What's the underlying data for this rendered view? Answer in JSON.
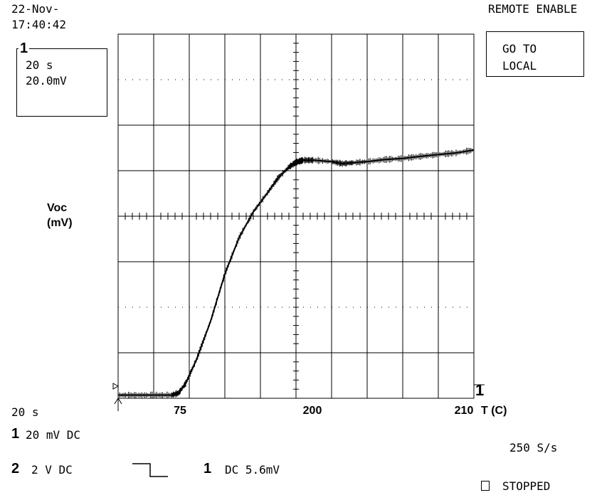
{
  "header": {
    "date": "22-Nov-",
    "time": "17:40:42",
    "status": "REMOTE ENABLE"
  },
  "channel_box": {
    "marker": "1",
    "timebase": "20 s",
    "scale": "20.0mV"
  },
  "goto_local": {
    "line1": "GO TO",
    "line2": "LOCAL"
  },
  "footer": {
    "timebase": "20  s",
    "ch1_num": "1",
    "ch1_setting": "20 mV  DC",
    "ch2_num": "2",
    "ch2_setting": "2  V  DC",
    "trigger_num": "1",
    "trigger_setting": "DC 5.6mV",
    "sample_rate": "250 S/s",
    "status": "STOPPED"
  },
  "chart_data": {
    "type": "line",
    "ylabel_line1": "Voc",
    "ylabel_line2": "(mV)",
    "xlabel": "T (C)",
    "x_tick_labels": [
      "75",
      "200",
      "210"
    ],
    "ylim": [
      -80,
      80
    ],
    "grid": true,
    "channel_marker": "1",
    "series": [
      {
        "x": [
          0.0,
          0.05,
          0.1,
          0.15,
          0.17,
          0.19,
          0.22,
          0.26,
          0.3,
          0.34,
          0.38,
          0.42,
          0.45,
          0.48,
          0.5,
          0.52,
          0.55,
          0.6,
          0.63,
          0.66,
          0.7,
          0.75,
          0.8,
          0.85,
          0.9,
          0.95,
          1.0
        ],
        "values": [
          -78.6,
          -78.6,
          -78.6,
          -78.6,
          -77.7,
          -73.4,
          -63.1,
          -46.1,
          -25.4,
          -9.4,
          1.9,
          10.3,
          16.9,
          21.6,
          23.7,
          24.6,
          24.6,
          24.0,
          23.1,
          23.5,
          24.0,
          24.9,
          25.4,
          26.3,
          27.1,
          27.8,
          29.1
        ]
      }
    ]
  }
}
